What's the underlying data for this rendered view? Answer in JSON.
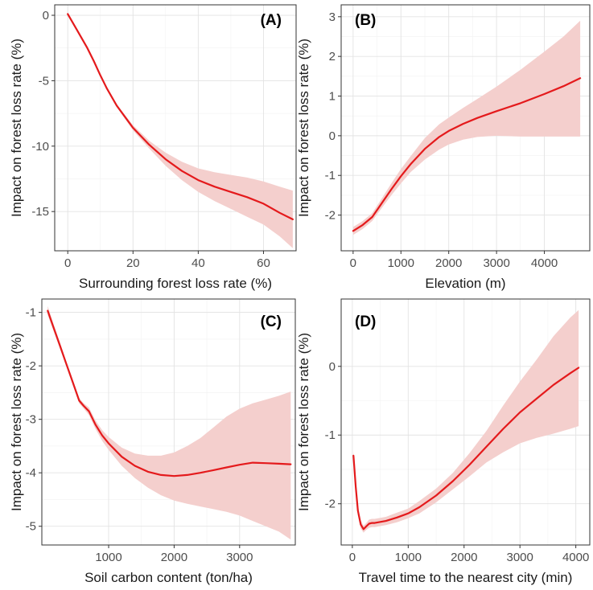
{
  "colors": {
    "line": "#e41a1c",
    "band": "#f4cfcd",
    "frame": "#333333"
  },
  "chart_data": [
    {
      "type": "line",
      "panel_label": "(A)",
      "xlabel": "Surrounding forest loss rate (%)",
      "ylabel": "Impact on forest loss rate (%)",
      "xlim": [
        -4,
        70
      ],
      "ylim": [
        -18,
        0.8
      ],
      "xticks": [
        0,
        20,
        40,
        60
      ],
      "yticks": [
        0,
        -5,
        -10,
        -15
      ],
      "xtick_labels": [
        "0",
        "20",
        "40",
        "60"
      ],
      "ytick_labels": [
        "0",
        "-5",
        "-10",
        "-15"
      ],
      "grid": true,
      "series": [
        {
          "x": [
            0,
            3,
            6,
            8,
            10,
            12,
            15,
            20,
            25,
            30,
            35,
            40,
            45,
            50,
            55,
            60,
            65,
            69
          ],
          "y": [
            0.1,
            -1.2,
            -2.5,
            -3.5,
            -4.6,
            -5.6,
            -6.9,
            -8.6,
            -9.9,
            -11.0,
            -11.9,
            -12.6,
            -13.1,
            -13.5,
            -13.9,
            -14.4,
            -15.1,
            -15.6
          ],
          "lower": [
            0.0,
            -1.3,
            -2.6,
            -3.6,
            -4.7,
            -5.7,
            -7.0,
            -8.8,
            -10.2,
            -11.5,
            -12.6,
            -13.5,
            -14.2,
            -14.8,
            -15.4,
            -16.0,
            -16.9,
            -17.8
          ],
          "upper": [
            0.2,
            -1.1,
            -2.4,
            -3.4,
            -4.5,
            -5.5,
            -6.8,
            -8.4,
            -9.6,
            -10.5,
            -11.2,
            -11.7,
            -12.0,
            -12.2,
            -12.4,
            -12.7,
            -13.1,
            -13.4
          ]
        }
      ]
    },
    {
      "type": "line",
      "panel_label": "(B)",
      "xlabel": "Elevation (m)",
      "ylabel": "Impact on forest loss rate (%)",
      "xlim": [
        -250,
        4950
      ],
      "ylim": [
        -2.9,
        3.3
      ],
      "xticks": [
        0,
        1000,
        2000,
        3000,
        4000
      ],
      "yticks": [
        -2,
        -1,
        0,
        1,
        2,
        3
      ],
      "xtick_labels": [
        "0",
        "1000",
        "2000",
        "3000",
        "4000"
      ],
      "ytick_labels": [
        "-2",
        "-1",
        "0",
        "1",
        "2",
        "3"
      ],
      "grid": true,
      "series": [
        {
          "x": [
            0,
            200,
            400,
            600,
            800,
            1000,
            1200,
            1500,
            1800,
            2000,
            2300,
            2600,
            3000,
            3500,
            4000,
            4400,
            4750
          ],
          "y": [
            -2.4,
            -2.25,
            -2.05,
            -1.7,
            -1.35,
            -1.02,
            -0.72,
            -0.33,
            -0.03,
            0.12,
            0.3,
            0.45,
            0.62,
            0.82,
            1.05,
            1.25,
            1.45
          ],
          "lower": [
            -2.5,
            -2.35,
            -2.15,
            -1.82,
            -1.5,
            -1.2,
            -0.92,
            -0.6,
            -0.35,
            -0.22,
            -0.1,
            -0.03,
            0.0,
            -0.02,
            -0.02,
            -0.02,
            -0.02
          ],
          "upper": [
            -2.3,
            -2.15,
            -1.95,
            -1.58,
            -1.2,
            -0.84,
            -0.52,
            -0.06,
            0.29,
            0.46,
            0.7,
            0.93,
            1.24,
            1.66,
            2.12,
            2.5,
            2.9
          ]
        }
      ]
    },
    {
      "type": "line",
      "panel_label": "(C)",
      "xlabel": "Soil carbon content (ton/ha)",
      "ylabel": "Impact on forest loss rate (%)",
      "xlim": [
        -20,
        3850
      ],
      "ylim": [
        -5.35,
        -0.75
      ],
      "xticks": [
        1000,
        2000,
        3000
      ],
      "yticks": [
        -1,
        -2,
        -3,
        -4,
        -5
      ],
      "xtick_labels": [
        "1000",
        "2000",
        "3000"
      ],
      "ytick_labels": [
        "-1",
        "-2",
        "-3",
        "-4",
        "-5"
      ],
      "grid": true,
      "series": [
        {
          "x": [
            70,
            150,
            250,
            350,
            450,
            550,
            620,
            700,
            800,
            900,
            1000,
            1200,
            1400,
            1600,
            1800,
            2000,
            2200,
            2400,
            2600,
            2800,
            3000,
            3200,
            3400,
            3600,
            3780
          ],
          "y": [
            -0.97,
            -1.25,
            -1.6,
            -1.95,
            -2.3,
            -2.65,
            -2.75,
            -2.85,
            -3.1,
            -3.3,
            -3.45,
            -3.7,
            -3.87,
            -3.98,
            -4.04,
            -4.06,
            -4.04,
            -4.0,
            -3.95,
            -3.9,
            -3.85,
            -3.81,
            -3.82,
            -3.83,
            -3.84
          ],
          "lower": [
            -1.05,
            -1.32,
            -1.66,
            -2.0,
            -2.35,
            -2.7,
            -2.8,
            -2.92,
            -3.18,
            -3.4,
            -3.57,
            -3.87,
            -4.1,
            -4.28,
            -4.42,
            -4.52,
            -4.58,
            -4.63,
            -4.68,
            -4.73,
            -4.8,
            -4.9,
            -5.0,
            -5.1,
            -5.25
          ],
          "upper": [
            -0.88,
            -1.18,
            -1.54,
            -1.9,
            -2.25,
            -2.6,
            -2.7,
            -2.78,
            -3.02,
            -3.2,
            -3.33,
            -3.53,
            -3.64,
            -3.68,
            -3.68,
            -3.62,
            -3.5,
            -3.35,
            -3.15,
            -2.95,
            -2.8,
            -2.7,
            -2.63,
            -2.56,
            -2.48
          ]
        }
      ]
    },
    {
      "type": "line",
      "panel_label": "(D)",
      "xlabel": "Travel time to the nearest city (min)",
      "ylabel": "Impact on forest loss rate (%)",
      "xlim": [
        -200,
        4250
      ],
      "ylim": [
        -2.6,
        0.98
      ],
      "xticks": [
        0,
        1000,
        2000,
        3000,
        4000
      ],
      "yticks": [
        0,
        -1,
        -2
      ],
      "xtick_labels": [
        "0",
        "1000",
        "2000",
        "3000",
        "4000"
      ],
      "ytick_labels": [
        "0",
        "-1",
        "-2"
      ],
      "grid": true,
      "series": [
        {
          "x": [
            20,
            60,
            100,
            150,
            200,
            250,
            300,
            350,
            400,
            600,
            800,
            1000,
            1200,
            1500,
            1800,
            2100,
            2400,
            2700,
            3000,
            3300,
            3600,
            3900,
            4050
          ],
          "y": [
            -1.3,
            -1.75,
            -2.1,
            -2.3,
            -2.37,
            -2.33,
            -2.29,
            -2.28,
            -2.28,
            -2.25,
            -2.2,
            -2.14,
            -2.05,
            -1.88,
            -1.67,
            -1.43,
            -1.17,
            -0.91,
            -0.67,
            -0.47,
            -0.27,
            -0.1,
            -0.02
          ],
          "lower": [
            -1.37,
            -1.82,
            -2.17,
            -2.36,
            -2.42,
            -2.38,
            -2.35,
            -2.34,
            -2.34,
            -2.31,
            -2.27,
            -2.21,
            -2.14,
            -1.98,
            -1.79,
            -1.6,
            -1.4,
            -1.25,
            -1.12,
            -1.04,
            -0.98,
            -0.91,
            -0.87
          ],
          "upper": [
            -1.23,
            -1.68,
            -2.03,
            -2.24,
            -2.32,
            -2.28,
            -2.23,
            -2.22,
            -2.22,
            -2.19,
            -2.13,
            -2.07,
            -1.96,
            -1.78,
            -1.55,
            -1.26,
            -0.94,
            -0.57,
            -0.22,
            0.1,
            0.44,
            0.71,
            0.82
          ]
        }
      ]
    }
  ]
}
